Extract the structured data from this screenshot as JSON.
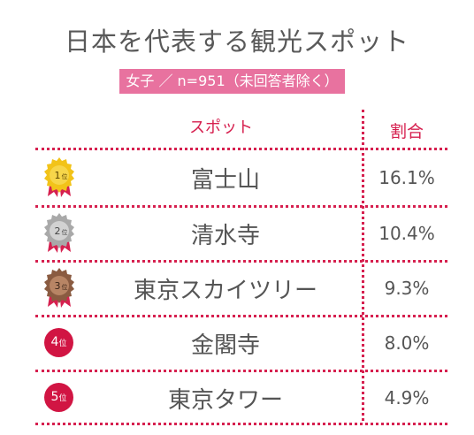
{
  "title": "日本を代表する観光スポット",
  "subtitle": "女子 ／ n=951（未回答者除く）",
  "header": {
    "spot": "スポット",
    "ratio": "割合"
  },
  "rank_suffix": "位",
  "colors": {
    "accent": "#d6204f",
    "subtitle_bg": "#e8729f",
    "gold": "#f2c319",
    "silver": "#b0b0b0",
    "bronze": "#9b6a4e"
  },
  "rows": [
    {
      "rank": "1",
      "name": "富士山",
      "pct": "16.1%"
    },
    {
      "rank": "2",
      "name": "清水寺",
      "pct": "10.4%"
    },
    {
      "rank": "3",
      "name": "東京スカイツリー",
      "pct": "9.3%"
    },
    {
      "rank": "4",
      "name": "金閣寺",
      "pct": "8.0%"
    },
    {
      "rank": "5",
      "name": "東京タワー",
      "pct": "4.9%"
    }
  ]
}
